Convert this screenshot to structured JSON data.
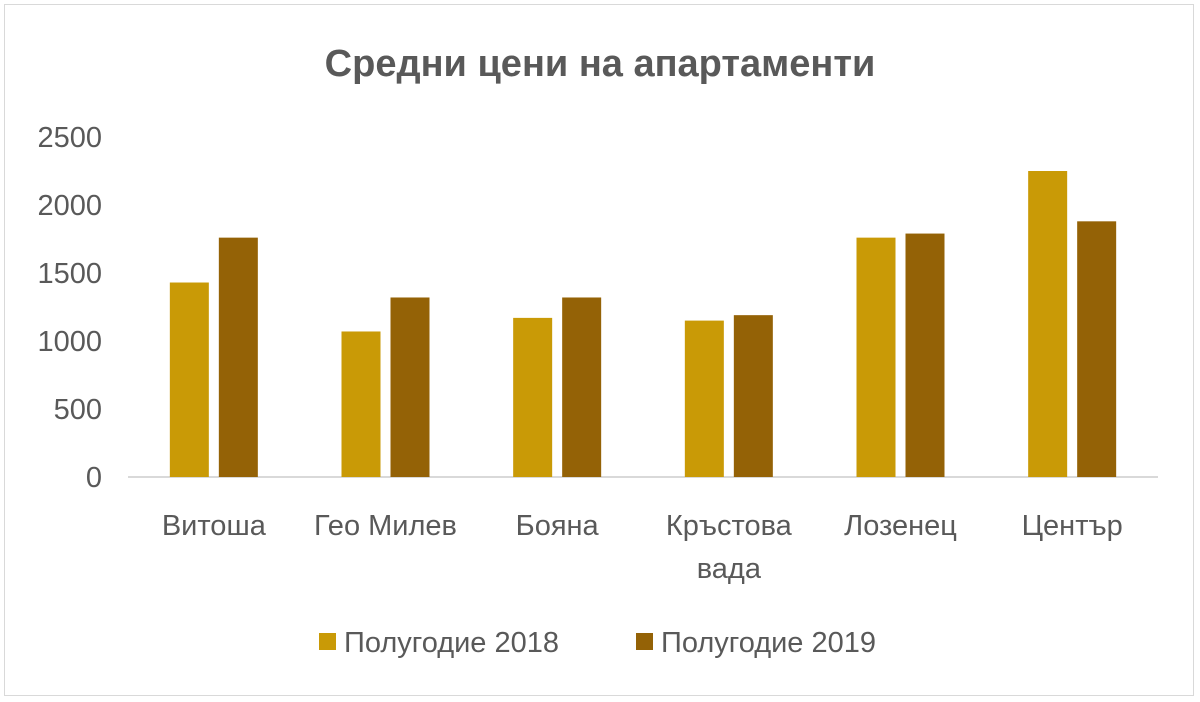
{
  "colors": {
    "series_2018": "#c99a06",
    "series_2019": "#946206",
    "axis": "#d9d9d9",
    "text": "#595959"
  },
  "chart_data": {
    "type": "bar",
    "title": "Средни цени на апартаменти",
    "xlabel": "",
    "ylabel": "",
    "ylim": [
      0,
      2500
    ],
    "yticks": [
      "0",
      "500",
      "1000",
      "1500",
      "2000",
      "2500"
    ],
    "grid": false,
    "legend_position": "bottom",
    "categories": [
      [
        "Витоша"
      ],
      [
        "Гео Милев"
      ],
      [
        "Бояна"
      ],
      [
        "Кръстова",
        "вада"
      ],
      [
        "Лозенец"
      ],
      [
        "Център"
      ]
    ],
    "series": [
      {
        "name": "Полугодие 2018",
        "values": [
          1430,
          1070,
          1170,
          1150,
          1760,
          2250
        ]
      },
      {
        "name": "Полугодие 2019",
        "values": [
          1760,
          1320,
          1320,
          1190,
          1790,
          1880
        ]
      }
    ]
  }
}
